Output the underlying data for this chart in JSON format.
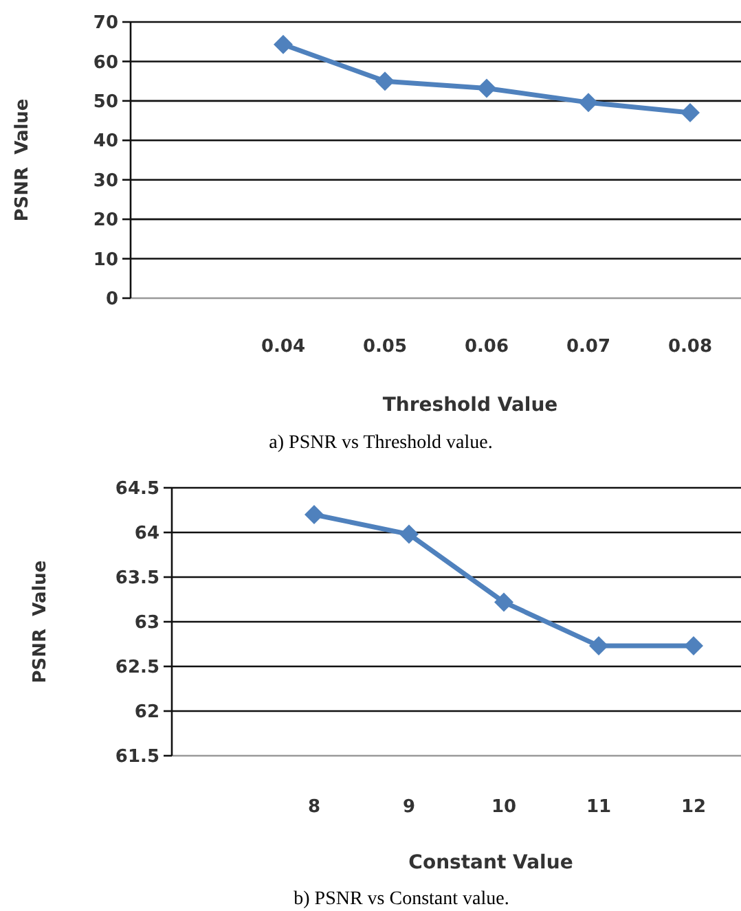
{
  "chart_data": [
    {
      "type": "line",
      "categories": [
        null,
        "0.04",
        "0.05",
        "0.06",
        "0.07",
        "0.08"
      ],
      "xlabel": "Threshold Value",
      "ylabel": "PSNR  Value",
      "ylim": [
        0,
        70
      ],
      "yticks": [
        0,
        10,
        20,
        30,
        40,
        50,
        60,
        70
      ],
      "grid": "y",
      "marker": "diamond",
      "line_style": "solid",
      "annotations": [
        "a) PSNR vs Threshold value."
      ],
      "series": [
        {
          "color": "#4f81bd",
          "values": [
            null,
            64.3,
            55,
            53.2,
            49.6,
            47
          ]
        }
      ]
    },
    {
      "type": "line",
      "categories": [
        null,
        "8",
        "9",
        "10",
        "11",
        "12"
      ],
      "xlabel": "Constant  Value",
      "ylabel": "PSNR  Value",
      "ylim": [
        61.5,
        64.5
      ],
      "yticks": [
        61.5,
        62,
        62.5,
        63,
        63.5,
        64,
        64.5
      ],
      "grid": "y",
      "marker": "diamond",
      "line_style": "solid",
      "annotations": [
        "b) PSNR vs Constant value."
      ],
      "series": [
        {
          "color": "#4f81bd",
          "values": [
            null,
            64.2,
            63.98,
            63.22,
            62.73,
            62.73
          ]
        }
      ]
    }
  ]
}
